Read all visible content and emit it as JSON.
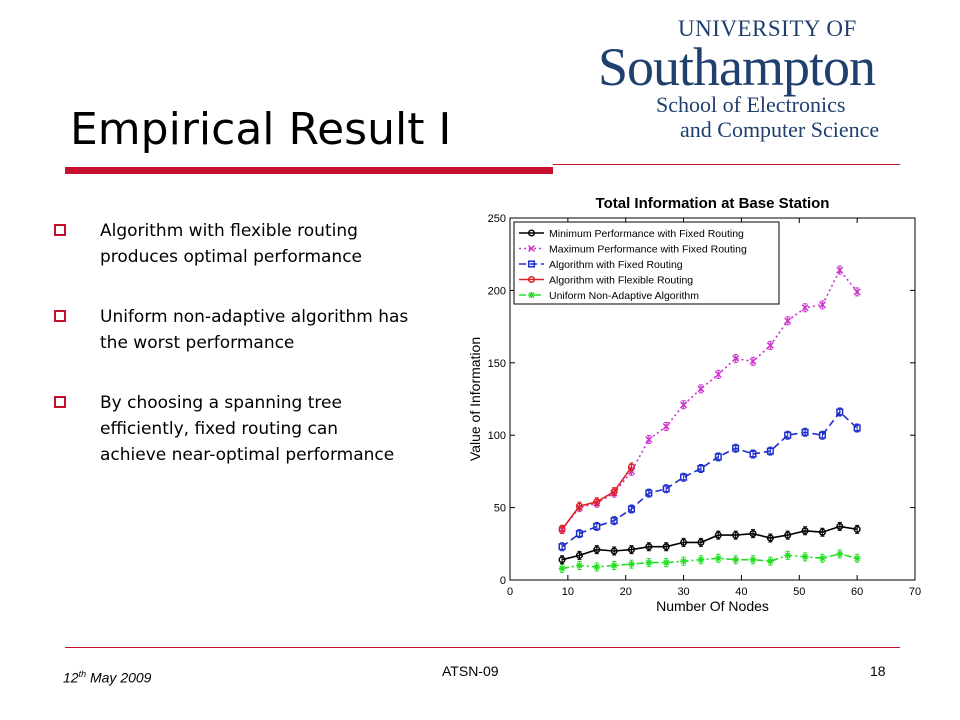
{
  "logo": {
    "line1": "UNIVERSITY OF",
    "line2": "Southampton",
    "line3": "School of Electronics",
    "line4": "and Computer Science"
  },
  "slide": {
    "title": "Empirical Result I",
    "bullets": [
      "Algorithm with flexible routing\nproduces optimal performance",
      "Uniform non-adaptive algorithm has\nthe worst performance",
      "By choosing a spanning tree\nefficiently,  fixed routing can\nachieve  near-optimal performance"
    ]
  },
  "footer": {
    "date_day": "12",
    "date_suffix": "th",
    "date_rest": " May 2009",
    "center": "ATSN-09",
    "page": "18"
  },
  "colors": {
    "accent_red": "#c8102e",
    "logo_blue": "#1f3f6e"
  },
  "chart_data": {
    "type": "line",
    "title": "Total Information at Base Station",
    "xlabel": "Number Of Nodes",
    "ylabel": "Value of Information",
    "xlim": [
      0,
      70
    ],
    "ylim": [
      0,
      250
    ],
    "xticks": [
      0,
      10,
      20,
      30,
      40,
      50,
      60,
      70
    ],
    "yticks": [
      0,
      50,
      100,
      150,
      200,
      250
    ],
    "legend_position": "top-left",
    "series": [
      {
        "name": "Minimum Performance with Fixed Routing",
        "color": "#000000",
        "dash": "solid",
        "marker": "circle",
        "x": [
          9,
          12,
          15,
          18,
          21,
          24,
          27,
          30,
          33,
          36,
          39,
          42,
          45,
          48,
          51,
          54,
          57,
          60
        ],
        "y": [
          14,
          17,
          21,
          20,
          21,
          23,
          23,
          26,
          26,
          31,
          31,
          32,
          29,
          31,
          34,
          33,
          37,
          35
        ]
      },
      {
        "name": "Maximum Performance with Fixed Routing",
        "color": "#cc33cc",
        "dash": "dotted",
        "marker": "x",
        "x": [
          9,
          12,
          15,
          18,
          21,
          24,
          27,
          30,
          33,
          36,
          39,
          42,
          45,
          48,
          51,
          54,
          57,
          60
        ],
        "y": [
          35,
          50,
          53,
          60,
          75,
          97,
          106,
          121,
          132,
          142,
          153,
          151,
          162,
          179,
          188,
          190,
          214,
          199
        ]
      },
      {
        "name": "Algorithm with Fixed Routing",
        "color": "#1f2fcc",
        "dash": "dashed",
        "marker": "square",
        "x": [
          9,
          12,
          15,
          18,
          21,
          24,
          27,
          30,
          33,
          36,
          39,
          42,
          45,
          48,
          51,
          54,
          57,
          60
        ],
        "y": [
          23,
          32,
          37,
          41,
          49,
          60,
          63,
          71,
          77,
          85,
          91,
          87,
          89,
          100,
          102,
          100,
          116,
          105
        ]
      },
      {
        "name": "Algorithm with Flexible Routing",
        "color": "#dd2222",
        "dash": "solid",
        "marker": "circle",
        "x": [
          9,
          12,
          15,
          18,
          21
        ],
        "y": [
          35,
          51,
          54,
          61,
          78
        ]
      },
      {
        "name": "Uniform Non-Adaptive Algorithm",
        "color": "#22dd22",
        "dash": "dashdot",
        "marker": "star",
        "x": [
          9,
          12,
          15,
          18,
          21,
          24,
          27,
          30,
          33,
          36,
          39,
          42,
          45,
          48,
          51,
          54,
          57,
          60
        ],
        "y": [
          8,
          10,
          9,
          10,
          11,
          12,
          12,
          13,
          14,
          15,
          14,
          14,
          13,
          17,
          16,
          15,
          18,
          15
        ]
      }
    ]
  }
}
